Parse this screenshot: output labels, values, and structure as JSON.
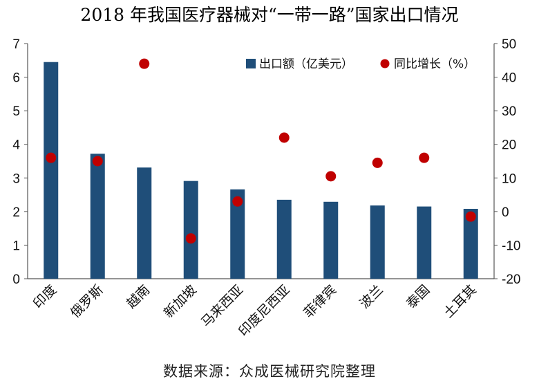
{
  "chart_data": {
    "type": "bar",
    "title": "2018 年我国医疗器械对“一带一路”国家出口情况",
    "categories": [
      "印度",
      "俄罗斯",
      "越南",
      "新加坡",
      "马来西亚",
      "印度尼西亚",
      "菲律宾",
      "波兰",
      "泰国",
      "土耳其"
    ],
    "series": [
      {
        "name": "出口额（亿美元）",
        "type": "bar",
        "axis": "left",
        "color": "#1f4e79",
        "values": [
          6.45,
          3.72,
          3.31,
          2.91,
          2.66,
          2.35,
          2.29,
          2.18,
          2.15,
          2.08
        ]
      },
      {
        "name": "同比增长（%）",
        "type": "scatter",
        "axis": "right",
        "color": "#c00000",
        "values": [
          16.0,
          15.0,
          44.0,
          -8.0,
          3.0,
          22.0,
          10.5,
          14.5,
          16.0,
          -1.5
        ]
      }
    ],
    "y_left": {
      "ylim": [
        0,
        7
      ],
      "ticks": [
        "0",
        "1",
        "2",
        "3",
        "4",
        "5",
        "6",
        "7"
      ]
    },
    "y_right": {
      "ylim": [
        -20,
        50
      ],
      "ticks": [
        "-20",
        "-10",
        "0",
        "10",
        "20",
        "30",
        "40",
        "50"
      ]
    },
    "legend": "top-right",
    "grid": false
  },
  "source_note": "数据来源：众成医械研究院整理"
}
